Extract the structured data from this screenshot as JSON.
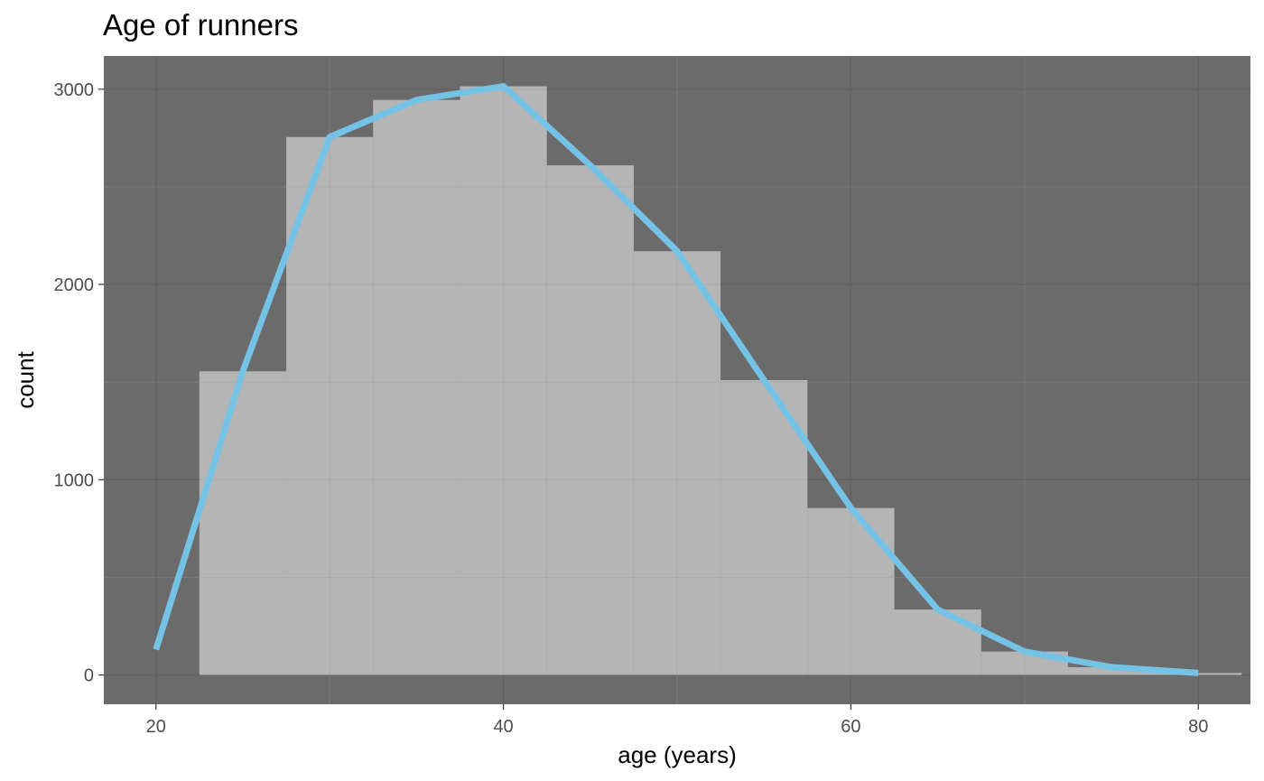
{
  "chart_data": {
    "type": "bar",
    "title": "Age of runners",
    "xlabel": "age (years)",
    "ylabel": "count",
    "xlim": [
      17,
      83
    ],
    "ylim": [
      -150,
      3170
    ],
    "x_ticks": [
      20,
      40,
      60,
      80
    ],
    "x_tick_labels": [
      "20",
      "40",
      "60",
      "80"
    ],
    "x_minor_ticks": [
      30,
      50,
      70
    ],
    "y_ticks": [
      0,
      1000,
      2000,
      3000
    ],
    "y_tick_labels": [
      "0",
      "1000",
      "2000",
      "3000"
    ],
    "y_minor_ticks": [
      500,
      1500,
      2500
    ],
    "grid": true,
    "histogram": {
      "bin_width": 5,
      "bins": [
        {
          "x_min": 22.5,
          "x_max": 27.5,
          "count": 1555
        },
        {
          "x_min": 27.5,
          "x_max": 32.5,
          "count": 2755
        },
        {
          "x_min": 32.5,
          "x_max": 37.5,
          "count": 2945
        },
        {
          "x_min": 37.5,
          "x_max": 42.5,
          "count": 3015
        },
        {
          "x_min": 42.5,
          "x_max": 47.5,
          "count": 2610
        },
        {
          "x_min": 47.5,
          "x_max": 52.5,
          "count": 2170
        },
        {
          "x_min": 52.5,
          "x_max": 57.5,
          "count": 1510
        },
        {
          "x_min": 57.5,
          "x_max": 62.5,
          "count": 855
        },
        {
          "x_min": 62.5,
          "x_max": 67.5,
          "count": 335
        },
        {
          "x_min": 67.5,
          "x_max": 72.5,
          "count": 120
        },
        {
          "x_min": 72.5,
          "x_max": 77.5,
          "count": 40
        },
        {
          "x_min": 77.5,
          "x_max": 82.5,
          "count": 10
        }
      ]
    },
    "frequency_polygon": {
      "x": [
        20,
        25,
        30,
        35,
        40,
        45,
        50,
        55,
        60,
        65,
        70,
        75,
        80
      ],
      "y": [
        130,
        1555,
        2755,
        2945,
        3015,
        2610,
        2170,
        1510,
        855,
        335,
        120,
        40,
        10
      ]
    },
    "colors": {
      "panel_background": "#6b6b6b",
      "grid_major": "#595959",
      "grid_minor": "#7a7a7a",
      "bar_fill": "#b5b5b5",
      "line": "#74c3e6",
      "tick_text": "#4d4d4d",
      "title_text": "#000000"
    }
  }
}
